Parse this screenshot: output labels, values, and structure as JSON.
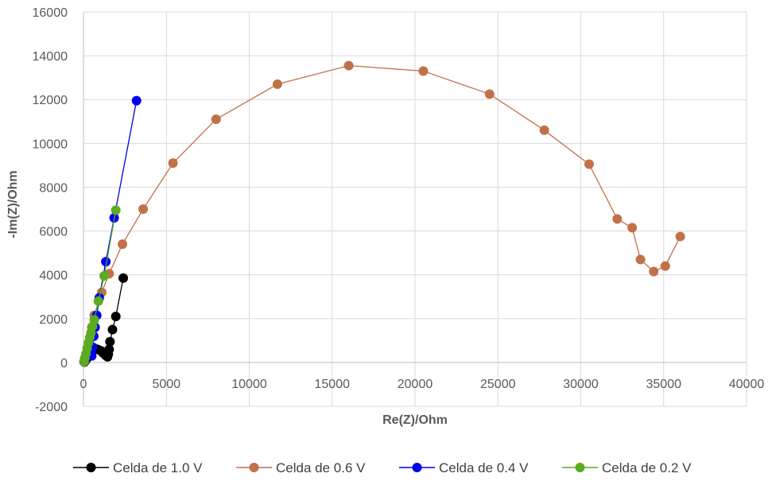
{
  "chart_data": {
    "type": "scatter",
    "title": "",
    "xlabel": "Re(Z)/Ohm",
    "ylabel": "-Im(Z)/Ohm",
    "xlim": [
      0,
      40000
    ],
    "ylim": [
      -2000,
      16000
    ],
    "x_ticks": [
      0,
      5000,
      10000,
      15000,
      20000,
      25000,
      30000,
      35000,
      40000
    ],
    "y_ticks": [
      -2000,
      0,
      2000,
      4000,
      6000,
      8000,
      10000,
      12000,
      14000,
      16000
    ],
    "x_tick_labels": [
      "0",
      "5000",
      "10000",
      "15000",
      "20000",
      "25000",
      "30000",
      "35000",
      "40000"
    ],
    "y_tick_labels": [
      "-2000",
      "0",
      "2000",
      "4000",
      "6000",
      "8000",
      "10000",
      "12000",
      "14000",
      "16000"
    ],
    "grid": true,
    "legend_position": "bottom",
    "series": [
      {
        "name": "Celda de 1.0 V",
        "color": "#000000",
        "points": [
          [
            60,
            20
          ],
          [
            120,
            80
          ],
          [
            200,
            180
          ],
          [
            300,
            320
          ],
          [
            450,
            500
          ],
          [
            650,
            650
          ],
          [
            850,
            600
          ],
          [
            1050,
            530
          ],
          [
            1200,
            420
          ],
          [
            1350,
            320
          ],
          [
            1450,
            260
          ],
          [
            1500,
            380
          ],
          [
            1550,
            600
          ],
          [
            1600,
            950
          ],
          [
            1750,
            1500
          ],
          [
            1950,
            2100
          ],
          [
            2400,
            3850
          ]
        ]
      },
      {
        "name": "Celda de 0.6 V",
        "color": "#C0714A",
        "points": [
          [
            60,
            50
          ],
          [
            150,
            250
          ],
          [
            280,
            650
          ],
          [
            500,
            1600
          ],
          [
            650,
            2150
          ],
          [
            1100,
            3200
          ],
          [
            1550,
            4050
          ],
          [
            2350,
            5400
          ],
          [
            3600,
            7000
          ],
          [
            5400,
            9100
          ],
          [
            8000,
            11100
          ],
          [
            11700,
            12700
          ],
          [
            16000,
            13550
          ],
          [
            20500,
            13300
          ],
          [
            24500,
            12250
          ],
          [
            27800,
            10600
          ],
          [
            30500,
            9050
          ],
          [
            32200,
            6550
          ],
          [
            33100,
            6150
          ],
          [
            33600,
            4700
          ],
          [
            34400,
            4150
          ],
          [
            35100,
            4400
          ],
          [
            36000,
            5750
          ]
        ]
      },
      {
        "name": "Celda de 0.4 V",
        "color": "#0000EE",
        "points": [
          [
            30,
            30
          ],
          [
            80,
            150
          ],
          [
            150,
            300
          ],
          [
            250,
            500
          ],
          [
            350,
            650
          ],
          [
            450,
            500
          ],
          [
            500,
            300
          ],
          [
            550,
            700
          ],
          [
            620,
            1200
          ],
          [
            700,
            1600
          ],
          [
            800,
            2150
          ],
          [
            950,
            2950
          ],
          [
            1350,
            4600
          ],
          [
            1850,
            6600
          ],
          [
            3200,
            11950
          ]
        ]
      },
      {
        "name": "Celda de 0.2 V",
        "color": "#59AC1F",
        "points": [
          [
            30,
            30
          ],
          [
            80,
            200
          ],
          [
            150,
            400
          ],
          [
            220,
            650
          ],
          [
            300,
            900
          ],
          [
            380,
            1150
          ],
          [
            450,
            1350
          ],
          [
            550,
            1650
          ],
          [
            650,
            1950
          ],
          [
            900,
            2800
          ],
          [
            1250,
            3950
          ],
          [
            1950,
            6950
          ]
        ]
      }
    ]
  }
}
